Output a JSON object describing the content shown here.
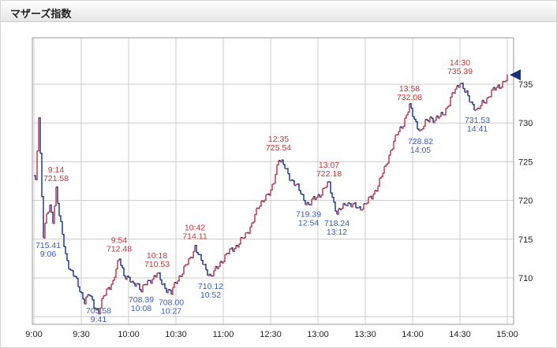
{
  "header": {
    "title": "マザーズ指数"
  },
  "chart_data": {
    "type": "candlestick",
    "title": "マザーズ指数",
    "x_ticks": [
      "9:00",
      "9:30",
      "10:00",
      "10:30",
      "11:00",
      "12:30",
      "13:00",
      "13:30",
      "14:00",
      "14:30",
      "15:00"
    ],
    "y_tick_labels": [
      735,
      730,
      725,
      720,
      715,
      710
    ],
    "y_gridlines": [
      705,
      710,
      715,
      720,
      725,
      730,
      735
    ],
    "ylim": [
      704,
      741
    ],
    "session_note": "morning 9:00-11:30, afternoon 12:30-15:00, lunch gap hidden",
    "legend_position": "none",
    "grid": true,
    "colors": {
      "up": "#c13a54",
      "down": "#1e3d8f",
      "annotation_high": "#cc3333",
      "annotation_low": "#3a5bbf",
      "grid": "#cccccc",
      "frame": "#9a9a9a",
      "tick_text": "#222222",
      "marker": "#16307e"
    },
    "annotations": [
      {
        "kind": "high",
        "time": "9:14",
        "value": "721.58"
      },
      {
        "kind": "high",
        "time": "9:54",
        "value": "712.48"
      },
      {
        "kind": "high",
        "time": "10:18",
        "value": "710.53"
      },
      {
        "kind": "high",
        "time": "10:42",
        "value": "714.11"
      },
      {
        "kind": "high",
        "time": "12:35",
        "value": "725.54"
      },
      {
        "kind": "high",
        "time": "13:07",
        "value": "722.18"
      },
      {
        "kind": "high",
        "time": "13:58",
        "value": "732.08"
      },
      {
        "kind": "high",
        "time": "14:30",
        "value": "735.39"
      },
      {
        "kind": "low",
        "time": "9:06",
        "value": "715.41"
      },
      {
        "kind": "low",
        "time": "9:41",
        "value": "705.58"
      },
      {
        "kind": "low",
        "time": "10:08",
        "value": "708.39"
      },
      {
        "kind": "low",
        "time": "10:27",
        "value": "708.00"
      },
      {
        "kind": "low",
        "time": "10:52",
        "value": "710.12"
      },
      {
        "kind": "low",
        "time": "12:54",
        "value": "719.39"
      },
      {
        "kind": "low",
        "time": "13:12",
        "value": "718.24"
      },
      {
        "kind": "low",
        "time": "14:05",
        "value": "728.82"
      },
      {
        "kind": "low",
        "time": "14:41",
        "value": "731.53"
      }
    ],
    "series": [
      {
        "t": "9:00",
        "v": 723.0
      },
      {
        "t": "9:01",
        "v": 722.3
      },
      {
        "t": "9:03",
        "v": 731.0
      },
      {
        "t": "9:04",
        "v": 726.0
      },
      {
        "t": "9:06",
        "v": 715.41
      },
      {
        "t": "9:08",
        "v": 718.0
      },
      {
        "t": "9:10",
        "v": 719.2
      },
      {
        "t": "9:12",
        "v": 717.5
      },
      {
        "t": "9:14",
        "v": 721.58
      },
      {
        "t": "9:16",
        "v": 718.0
      },
      {
        "t": "9:18",
        "v": 715.5
      },
      {
        "t": "9:20",
        "v": 713.0
      },
      {
        "t": "9:23",
        "v": 711.0
      },
      {
        "t": "9:26",
        "v": 710.0
      },
      {
        "t": "9:29",
        "v": 708.5
      },
      {
        "t": "9:32",
        "v": 707.0
      },
      {
        "t": "9:35",
        "v": 707.8
      },
      {
        "t": "9:38",
        "v": 706.5
      },
      {
        "t": "9:41",
        "v": 705.58
      },
      {
        "t": "9:44",
        "v": 707.5
      },
      {
        "t": "9:47",
        "v": 708.8
      },
      {
        "t": "9:50",
        "v": 709.5
      },
      {
        "t": "9:52",
        "v": 711.0
      },
      {
        "t": "9:54",
        "v": 712.48
      },
      {
        "t": "9:57",
        "v": 710.5
      },
      {
        "t": "10:00",
        "v": 709.8
      },
      {
        "t": "10:03",
        "v": 709.0
      },
      {
        "t": "10:05",
        "v": 709.5
      },
      {
        "t": "10:08",
        "v": 708.39
      },
      {
        "t": "10:11",
        "v": 709.2
      },
      {
        "t": "10:14",
        "v": 709.8
      },
      {
        "t": "10:18",
        "v": 710.53
      },
      {
        "t": "10:21",
        "v": 709.3
      },
      {
        "t": "10:24",
        "v": 708.6
      },
      {
        "t": "10:27",
        "v": 708.0
      },
      {
        "t": "10:30",
        "v": 709.5
      },
      {
        "t": "10:33",
        "v": 710.5
      },
      {
        "t": "10:36",
        "v": 711.5
      },
      {
        "t": "10:39",
        "v": 712.5
      },
      {
        "t": "10:42",
        "v": 714.11
      },
      {
        "t": "10:45",
        "v": 712.5
      },
      {
        "t": "10:48",
        "v": 711.5
      },
      {
        "t": "10:52",
        "v": 710.12
      },
      {
        "t": "10:55",
        "v": 711.0
      },
      {
        "t": "10:58",
        "v": 712.0
      },
      {
        "t": "11:02",
        "v": 713.0
      },
      {
        "t": "11:06",
        "v": 713.8
      },
      {
        "t": "11:10",
        "v": 714.5
      },
      {
        "t": "11:14",
        "v": 715.5
      },
      {
        "t": "11:18",
        "v": 717.0
      },
      {
        "t": "11:22",
        "v": 719.0
      },
      {
        "t": "11:26",
        "v": 720.5
      },
      {
        "t": "11:29",
        "v": 720.8
      },
      {
        "t": "12:30",
        "v": 721.0
      },
      {
        "t": "12:32",
        "v": 722.5
      },
      {
        "t": "12:35",
        "v": 725.54
      },
      {
        "t": "12:38",
        "v": 724.5
      },
      {
        "t": "12:42",
        "v": 723.0
      },
      {
        "t": "12:46",
        "v": 722.0
      },
      {
        "t": "12:50",
        "v": 720.5
      },
      {
        "t": "12:54",
        "v": 719.39
      },
      {
        "t": "12:58",
        "v": 720.3
      },
      {
        "t": "13:02",
        "v": 721.0
      },
      {
        "t": "13:05",
        "v": 721.8
      },
      {
        "t": "13:07",
        "v": 722.18
      },
      {
        "t": "13:09",
        "v": 720.5
      },
      {
        "t": "13:12",
        "v": 718.24
      },
      {
        "t": "13:15",
        "v": 719.0
      },
      {
        "t": "13:18",
        "v": 719.8
      },
      {
        "t": "13:22",
        "v": 719.3
      },
      {
        "t": "13:26",
        "v": 719.0
      },
      {
        "t": "13:30",
        "v": 719.5
      },
      {
        "t": "13:34",
        "v": 720.5
      },
      {
        "t": "13:38",
        "v": 722.0
      },
      {
        "t": "13:42",
        "v": 724.0
      },
      {
        "t": "13:46",
        "v": 726.5
      },
      {
        "t": "13:50",
        "v": 728.5
      },
      {
        "t": "13:54",
        "v": 730.0
      },
      {
        "t": "13:58",
        "v": 732.08
      },
      {
        "t": "14:01",
        "v": 730.5
      },
      {
        "t": "14:05",
        "v": 728.82
      },
      {
        "t": "14:08",
        "v": 730.0
      },
      {
        "t": "14:11",
        "v": 730.8
      },
      {
        "t": "14:14",
        "v": 730.3
      },
      {
        "t": "14:17",
        "v": 730.8
      },
      {
        "t": "14:20",
        "v": 731.5
      },
      {
        "t": "14:23",
        "v": 732.5
      },
      {
        "t": "14:26",
        "v": 734.0
      },
      {
        "t": "14:30",
        "v": 735.39
      },
      {
        "t": "14:33",
        "v": 734.0
      },
      {
        "t": "14:36",
        "v": 733.0
      },
      {
        "t": "14:41",
        "v": 731.53
      },
      {
        "t": "14:44",
        "v": 732.5
      },
      {
        "t": "14:47",
        "v": 733.2
      },
      {
        "t": "14:50",
        "v": 734.0
      },
      {
        "t": "14:53",
        "v": 734.5
      },
      {
        "t": "14:56",
        "v": 735.0
      },
      {
        "t": "15:00",
        "v": 735.8
      }
    ],
    "last_marker": {
      "t": "15:00",
      "v": 735.8
    }
  }
}
